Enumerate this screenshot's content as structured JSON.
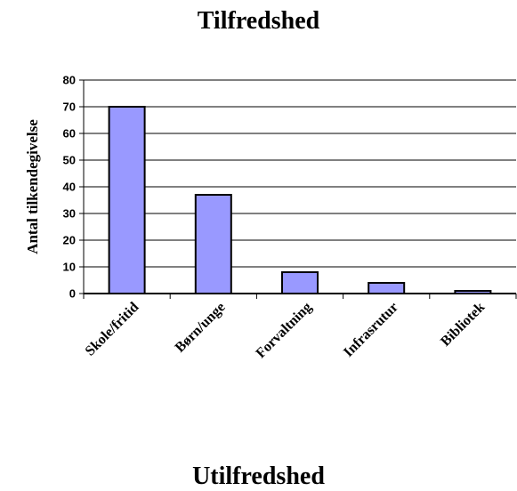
{
  "titles": {
    "top": "Tilfredshed",
    "bottom": "Utilfredshed"
  },
  "chart_data": {
    "type": "bar",
    "title": "Tilfredshed",
    "ylabel": "Antal tilkendegivelse",
    "xlabel": "",
    "categories": [
      "Skole/fritid",
      "Børn/unge",
      "Forvaltning",
      "Infrasrutur",
      "Bibliotek"
    ],
    "values": [
      70,
      37,
      8,
      4,
      1
    ],
    "ylim": [
      0,
      80
    ],
    "yticks": [
      0,
      10,
      20,
      30,
      40,
      50,
      60,
      70,
      80
    ],
    "grid": true,
    "bar_color": "#9999ff",
    "legend": "none"
  }
}
